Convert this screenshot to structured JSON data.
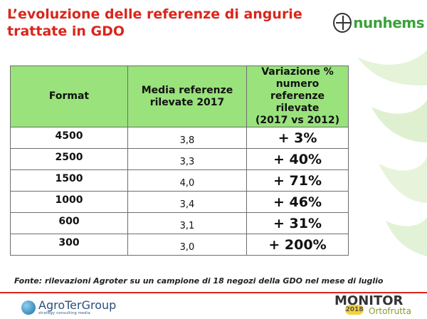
{
  "slide": {
    "title_line1": "L’evoluzione delle referenze di angurie",
    "title_line2": "trattate in GDO"
  },
  "brand": {
    "name": "nunhems"
  },
  "table": {
    "headers": {
      "format": "Format",
      "avg": [
        "Media referenze",
        "rilevate 2017"
      ],
      "var": [
        "Variazione %",
        "numero referenze",
        "rilevate",
        "(2017 vs 2012)"
      ]
    },
    "rows": [
      {
        "format": "4500",
        "avg": "3,8",
        "var": "+ 3%"
      },
      {
        "format": "2500",
        "avg": "3,3",
        "var": "+ 40%"
      },
      {
        "format": "1500",
        "avg": "4,0",
        "var": "+ 71%"
      },
      {
        "format": "1000",
        "avg": "3,4",
        "var": "+ 46%"
      },
      {
        "format": "600",
        "avg": "3,1",
        "var": "+ 31%"
      },
      {
        "format": "300",
        "avg": "3,0",
        "var": "+ 200%"
      }
    ]
  },
  "source": "Fonte: rilevazioni Agroter su un campione di 18 negozi della GDO nel mese di luglio",
  "footer": {
    "agroter_name": "AgroTerGroup",
    "agroter_tagline": "strategy consulting media",
    "monitor_main": "MONITOR",
    "monitor_year": "2018",
    "monitor_sub": "Ortofrutta"
  },
  "colors": {
    "title": "#d9261c",
    "header_bg": "#99e27c",
    "brand": "#3aa23a"
  }
}
